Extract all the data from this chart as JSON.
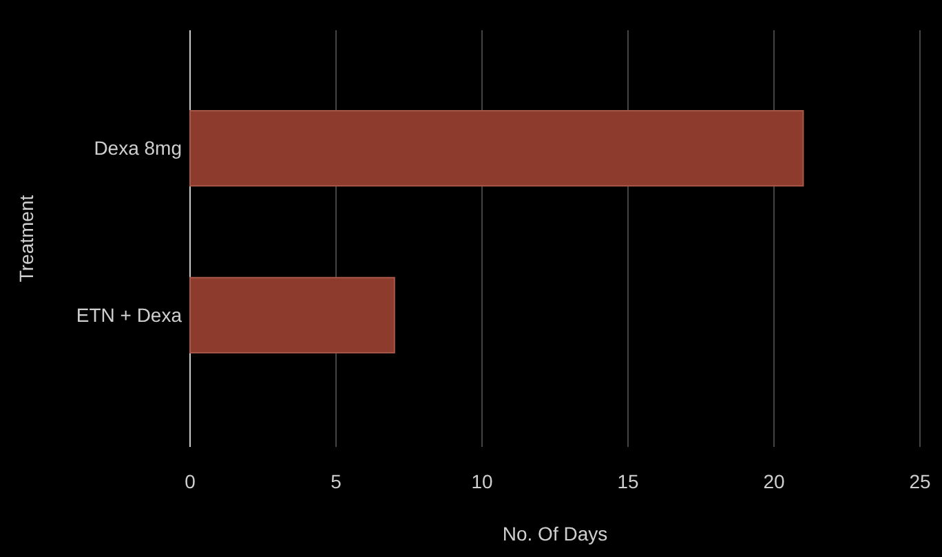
{
  "chart_data": {
    "type": "bar",
    "orientation": "horizontal",
    "categories": [
      "Dexa 8mg",
      "ETN + Dexa"
    ],
    "values": [
      21,
      7
    ],
    "color": "#8c3b2d",
    "xlim": [
      0,
      25
    ],
    "xticks": [
      0,
      5,
      10,
      15,
      20,
      25
    ],
    "xlabel": "No. Of Days",
    "ylabel": "Treatment",
    "grid": "x"
  }
}
